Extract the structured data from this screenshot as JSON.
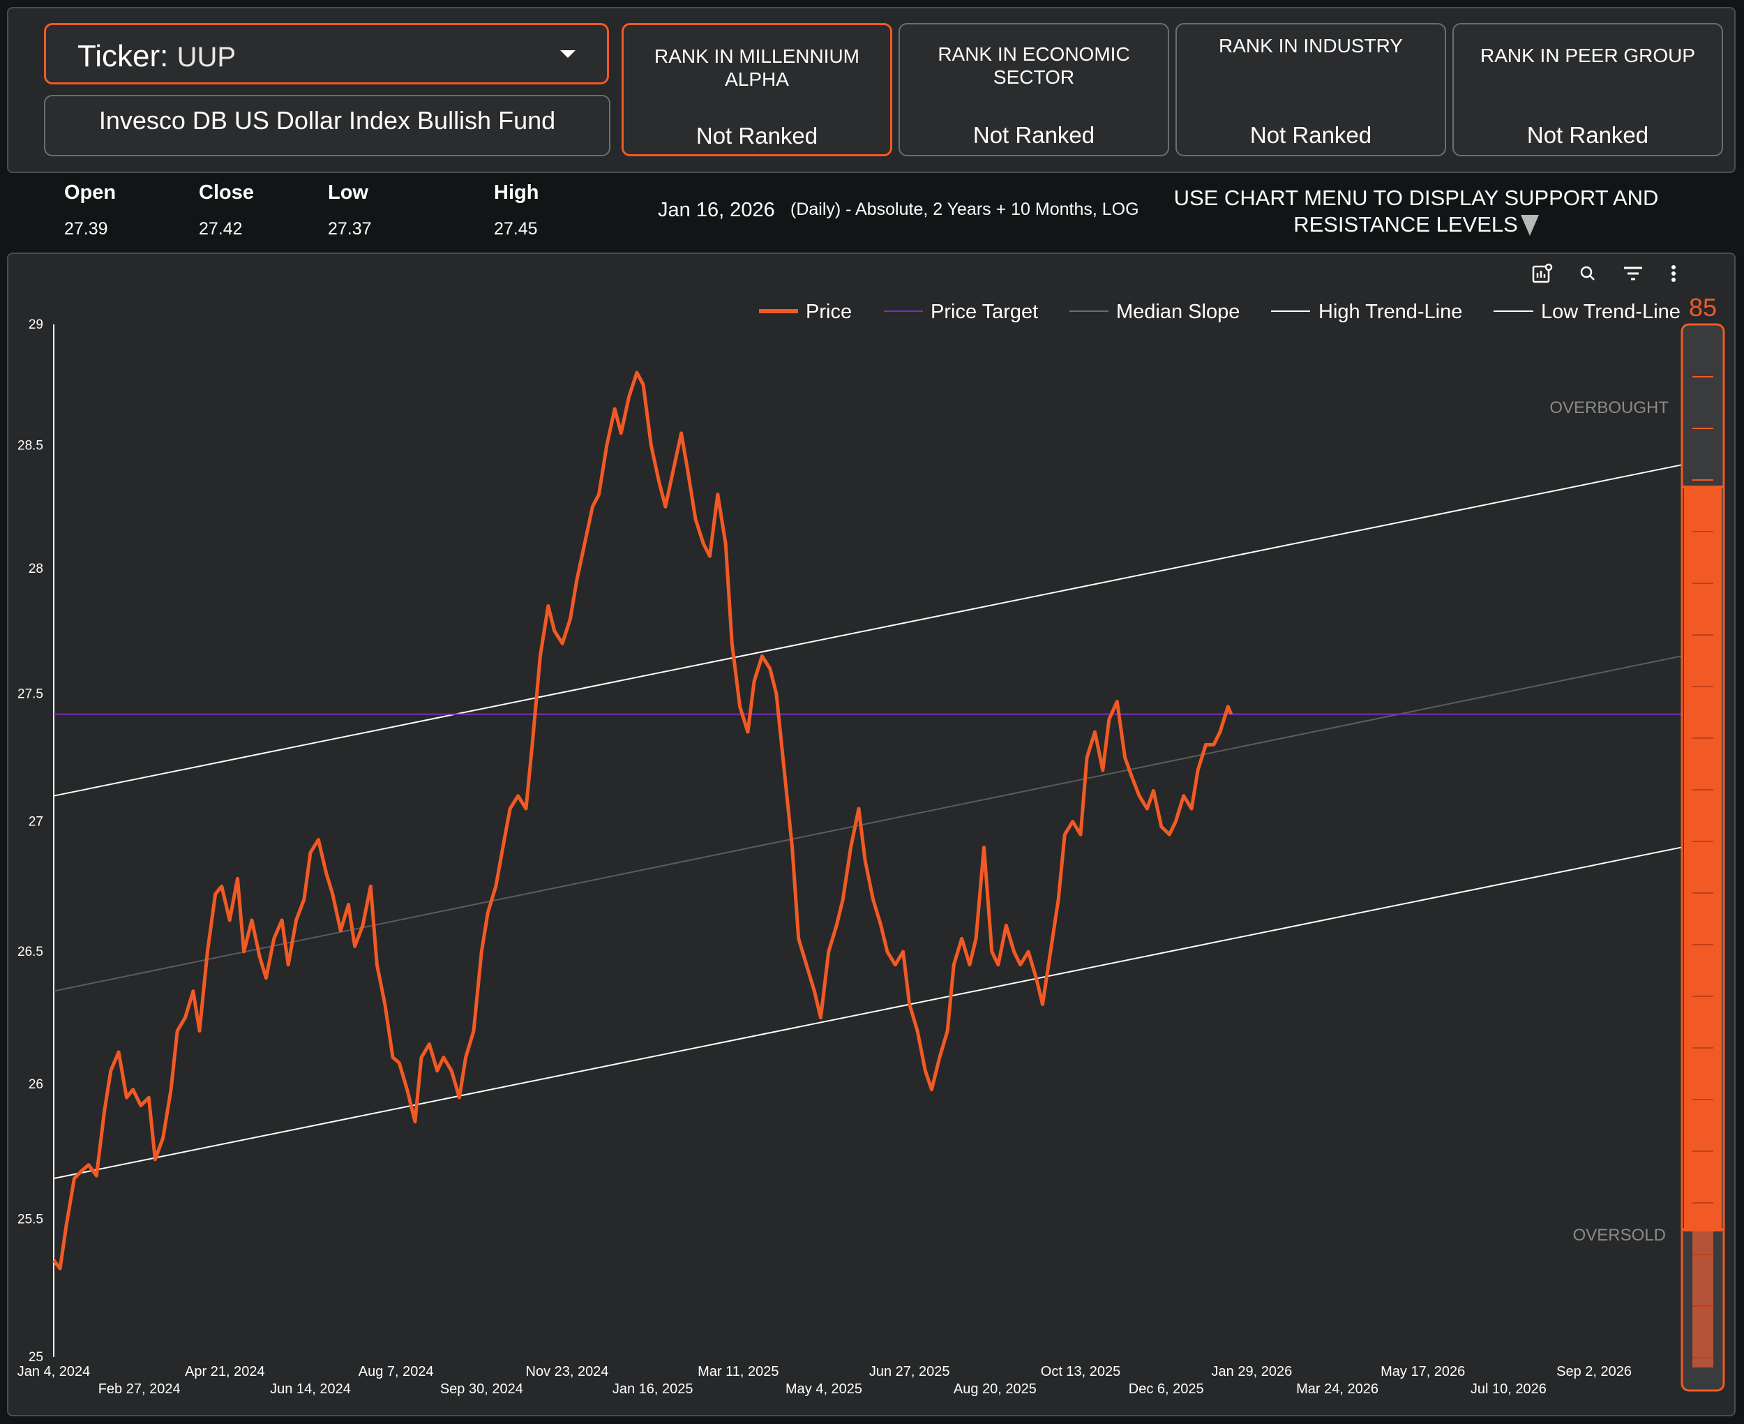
{
  "header": {
    "ticker_label": "Ticker",
    "ticker_value": "UUP",
    "fund_name": "Invesco DB US Dollar Index Bullish Fund",
    "ranks": [
      {
        "title": "RANK IN MILLENNIUM ALPHA",
        "value": "Not Ranked"
      },
      {
        "title": "RANK IN ECONOMIC SECTOR",
        "value": "Not Ranked"
      },
      {
        "title": "RANK IN INDUSTRY",
        "value": "Not Ranked"
      },
      {
        "title": "RANK IN PEER GROUP",
        "value": "Not Ranked"
      }
    ]
  },
  "ohlc": {
    "open_label": "Open",
    "open": "27.39",
    "close_label": "Close",
    "close": "27.42",
    "low_label": "Low",
    "low": "27.37",
    "high_label": "High",
    "high": "27.45"
  },
  "info": {
    "date": "Jan 16, 2026",
    "description": "(Daily) - Absolute, 2 Years + 10 Months, LOG",
    "menu_note": "USE CHART MENU TO DISPLAY SUPPORT AND RESISTANCE LEVELS"
  },
  "toolbar_icons": [
    "chart-settings-icon",
    "zoom-icon",
    "filter-icon",
    "more-vert-icon"
  ],
  "colors": {
    "price": "#f15a24",
    "target": "#7b2fbe",
    "median": "#4a4c4e",
    "trend": "#ffffff",
    "gauge": "#f15a24"
  },
  "gauge": {
    "value": "85",
    "overbought_label": "OVERBOUGHT",
    "oversold_label": "OVERSOLD"
  },
  "chart_data": {
    "type": "line",
    "title": "",
    "xlabel": "",
    "ylabel": "",
    "scale": "log",
    "ylim": [
      25,
      29
    ],
    "y_ticks": [
      "25",
      "25.5",
      "26",
      "26.5",
      "27",
      "27.5",
      "28",
      "28.5",
      "29"
    ],
    "x_ticks_row1": [
      "Jan 4, 2024",
      "Apr 21, 2024",
      "Aug 7, 2024",
      "Nov 23, 2024",
      "Mar 11, 2025",
      "Jun 27, 2025",
      "Oct 13, 2025",
      "Jan 29, 2026",
      "May 17, 2026",
      "Sep 2, 2026"
    ],
    "x_ticks_row2": [
      "Feb 27, 2024",
      "Jun 14, 2024",
      "Sep 30, 2024",
      "Jan 16, 2025",
      "May 4, 2025",
      "Aug 20, 2025",
      "Dec 6, 2025",
      "Mar 24, 2026",
      "Jul 10, 2026"
    ],
    "x_range": [
      "2024-01-04",
      "2026-10-27"
    ],
    "legend": [
      "Price",
      "Price Target",
      "Median Slope",
      "High Trend-Line",
      "Low Trend-Line"
    ],
    "legend_position": "top-right",
    "price_target": 27.42,
    "high_trend_line": {
      "start": [
        "2024-01-04",
        27.1
      ],
      "end": [
        "2026-10-27",
        28.42
      ]
    },
    "median_slope": {
      "start": [
        "2024-01-04",
        26.35
      ],
      "end": [
        "2026-10-27",
        27.65
      ]
    },
    "low_trend_line": {
      "start": [
        "2024-01-04",
        25.65
      ],
      "end": [
        "2026-10-27",
        26.9
      ]
    },
    "price_series": [
      [
        "2024-01-04",
        25.35
      ],
      [
        "2024-01-08",
        25.32
      ],
      [
        "2024-01-12",
        25.48
      ],
      [
        "2024-01-17",
        25.65
      ],
      [
        "2024-01-22",
        25.68
      ],
      [
        "2024-01-26",
        25.7
      ],
      [
        "2024-01-31",
        25.66
      ],
      [
        "2024-02-05",
        25.9
      ],
      [
        "2024-02-09",
        26.05
      ],
      [
        "2024-02-14",
        26.12
      ],
      [
        "2024-02-19",
        25.95
      ],
      [
        "2024-02-23",
        25.98
      ],
      [
        "2024-02-28",
        25.92
      ],
      [
        "2024-03-04",
        25.95
      ],
      [
        "2024-03-08",
        25.72
      ],
      [
        "2024-03-13",
        25.8
      ],
      [
        "2024-03-18",
        25.98
      ],
      [
        "2024-03-22",
        26.2
      ],
      [
        "2024-03-27",
        26.25
      ],
      [
        "2024-04-01",
        26.35
      ],
      [
        "2024-04-05",
        26.2
      ],
      [
        "2024-04-10",
        26.5
      ],
      [
        "2024-04-15",
        26.72
      ],
      [
        "2024-04-19",
        26.75
      ],
      [
        "2024-04-24",
        26.62
      ],
      [
        "2024-04-29",
        26.78
      ],
      [
        "2024-05-03",
        26.5
      ],
      [
        "2024-05-08",
        26.62
      ],
      [
        "2024-05-13",
        26.48
      ],
      [
        "2024-05-17",
        26.4
      ],
      [
        "2024-05-22",
        26.55
      ],
      [
        "2024-05-27",
        26.62
      ],
      [
        "2024-05-31",
        26.45
      ],
      [
        "2024-06-05",
        26.62
      ],
      [
        "2024-06-10",
        26.7
      ],
      [
        "2024-06-14",
        26.88
      ],
      [
        "2024-06-19",
        26.93
      ],
      [
        "2024-06-24",
        26.8
      ],
      [
        "2024-06-28",
        26.72
      ],
      [
        "2024-07-03",
        26.58
      ],
      [
        "2024-07-08",
        26.68
      ],
      [
        "2024-07-12",
        26.52
      ],
      [
        "2024-07-17",
        26.6
      ],
      [
        "2024-07-22",
        26.75
      ],
      [
        "2024-07-26",
        26.45
      ],
      [
        "2024-07-31",
        26.3
      ],
      [
        "2024-08-05",
        26.1
      ],
      [
        "2024-08-09",
        26.08
      ],
      [
        "2024-08-14",
        25.98
      ],
      [
        "2024-08-19",
        25.86
      ],
      [
        "2024-08-23",
        26.1
      ],
      [
        "2024-08-28",
        26.15
      ],
      [
        "2024-09-02",
        26.05
      ],
      [
        "2024-09-06",
        26.1
      ],
      [
        "2024-09-11",
        26.05
      ],
      [
        "2024-09-16",
        25.95
      ],
      [
        "2024-09-20",
        26.1
      ],
      [
        "2024-09-25",
        26.2
      ],
      [
        "2024-09-30",
        26.5
      ],
      [
        "2024-10-04",
        26.65
      ],
      [
        "2024-10-09",
        26.75
      ],
      [
        "2024-10-14",
        26.92
      ],
      [
        "2024-10-18",
        27.05
      ],
      [
        "2024-10-23",
        27.1
      ],
      [
        "2024-10-28",
        27.05
      ],
      [
        "2024-11-01",
        27.3
      ],
      [
        "2024-11-06",
        27.65
      ],
      [
        "2024-11-11",
        27.85
      ],
      [
        "2024-11-15",
        27.75
      ],
      [
        "2024-11-20",
        27.7
      ],
      [
        "2024-11-25",
        27.8
      ],
      [
        "2024-11-29",
        27.95
      ],
      [
        "2024-12-04",
        28.1
      ],
      [
        "2024-12-09",
        28.25
      ],
      [
        "2024-12-13",
        28.3
      ],
      [
        "2024-12-18",
        28.5
      ],
      [
        "2024-12-23",
        28.65
      ],
      [
        "2024-12-27",
        28.55
      ],
      [
        "2025-01-01",
        28.7
      ],
      [
        "2025-01-06",
        28.8
      ],
      [
        "2025-01-10",
        28.75
      ],
      [
        "2025-01-15",
        28.5
      ],
      [
        "2025-01-20",
        28.35
      ],
      [
        "2025-01-24",
        28.25
      ],
      [
        "2025-01-29",
        28.4
      ],
      [
        "2025-02-03",
        28.55
      ],
      [
        "2025-02-07",
        28.4
      ],
      [
        "2025-02-12",
        28.2
      ],
      [
        "2025-02-17",
        28.1
      ],
      [
        "2025-02-21",
        28.05
      ],
      [
        "2025-02-26",
        28.3
      ],
      [
        "2025-03-03",
        28.1
      ],
      [
        "2025-03-07",
        27.7
      ],
      [
        "2025-03-12",
        27.45
      ],
      [
        "2025-03-17",
        27.35
      ],
      [
        "2025-03-21",
        27.55
      ],
      [
        "2025-03-26",
        27.65
      ],
      [
        "2025-03-31",
        27.6
      ],
      [
        "2025-04-04",
        27.5
      ],
      [
        "2025-04-09",
        27.2
      ],
      [
        "2025-04-14",
        26.9
      ],
      [
        "2025-04-18",
        26.55
      ],
      [
        "2025-04-23",
        26.45
      ],
      [
        "2025-04-28",
        26.35
      ],
      [
        "2025-05-02",
        26.25
      ],
      [
        "2025-05-07",
        26.5
      ],
      [
        "2025-05-12",
        26.6
      ],
      [
        "2025-05-16",
        26.7
      ],
      [
        "2025-05-21",
        26.9
      ],
      [
        "2025-05-26",
        27.05
      ],
      [
        "2025-05-30",
        26.85
      ],
      [
        "2025-06-04",
        26.7
      ],
      [
        "2025-06-09",
        26.6
      ],
      [
        "2025-06-13",
        26.5
      ],
      [
        "2025-06-18",
        26.45
      ],
      [
        "2025-06-23",
        26.5
      ],
      [
        "2025-06-27",
        26.3
      ],
      [
        "2025-07-02",
        26.2
      ],
      [
        "2025-07-07",
        26.05
      ],
      [
        "2025-07-11",
        25.98
      ],
      [
        "2025-07-16",
        26.1
      ],
      [
        "2025-07-21",
        26.2
      ],
      [
        "2025-07-25",
        26.45
      ],
      [
        "2025-07-30",
        26.55
      ],
      [
        "2025-08-04",
        26.45
      ],
      [
        "2025-08-08",
        26.55
      ],
      [
        "2025-08-13",
        26.9
      ],
      [
        "2025-08-18",
        26.5
      ],
      [
        "2025-08-22",
        26.45
      ],
      [
        "2025-08-27",
        26.6
      ],
      [
        "2025-09-01",
        26.5
      ],
      [
        "2025-09-05",
        26.45
      ],
      [
        "2025-09-10",
        26.5
      ],
      [
        "2025-09-15",
        26.4
      ],
      [
        "2025-09-19",
        26.3
      ],
      [
        "2025-09-24",
        26.5
      ],
      [
        "2025-09-29",
        26.7
      ],
      [
        "2025-10-03",
        26.95
      ],
      [
        "2025-10-08",
        27.0
      ],
      [
        "2025-10-13",
        26.95
      ],
      [
        "2025-10-17",
        27.25
      ],
      [
        "2025-10-22",
        27.35
      ],
      [
        "2025-10-27",
        27.2
      ],
      [
        "2025-10-31",
        27.4
      ],
      [
        "2025-11-05",
        27.47
      ],
      [
        "2025-11-10",
        27.25
      ],
      [
        "2025-11-14",
        27.18
      ],
      [
        "2025-11-19",
        27.1
      ],
      [
        "2025-11-24",
        27.05
      ],
      [
        "2025-11-28",
        27.12
      ],
      [
        "2025-12-03",
        26.98
      ],
      [
        "2025-12-08",
        26.95
      ],
      [
        "2025-12-12",
        27.0
      ],
      [
        "2025-12-17",
        27.1
      ],
      [
        "2025-12-22",
        27.05
      ],
      [
        "2025-12-26",
        27.2
      ],
      [
        "2025-12-31",
        27.3
      ],
      [
        "2026-01-05",
        27.3
      ],
      [
        "2026-01-09",
        27.35
      ],
      [
        "2026-01-14",
        27.45
      ],
      [
        "2026-01-16",
        27.42
      ]
    ]
  }
}
